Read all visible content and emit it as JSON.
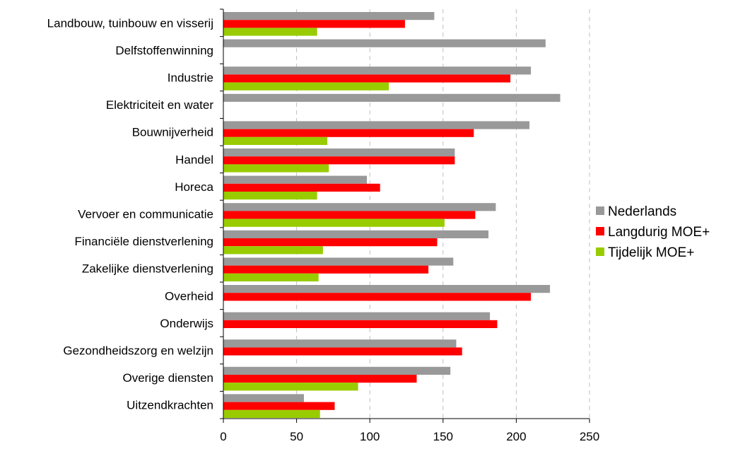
{
  "chart_data": {
    "type": "bar",
    "orientation": "horizontal",
    "title": "",
    "xlabel": "",
    "ylabel": "",
    "xlim": [
      0,
      250
    ],
    "xticks": [
      0,
      50,
      100,
      150,
      200,
      250
    ],
    "grid": "vertical dashed",
    "legend_position": "right",
    "categories": [
      "Landbouw, tuinbouw en visserij",
      "Delfstoffenwinning",
      "Industrie",
      "Elektriciteit en water",
      "Bouwnijverheid",
      "Handel",
      "Horeca",
      "Vervoer en communicatie",
      "Financiële dienstverlening",
      "Zakelijke dienstverlening",
      "Overheid",
      "Onderwijs",
      "Gezondheidszorg en welzijn",
      "Overige diensten",
      "Uitzendkrachten"
    ],
    "series": [
      {
        "name": "Nederlands",
        "color": "#999999",
        "values": [
          144,
          220,
          210,
          230,
          209,
          158,
          98,
          186,
          181,
          157,
          223,
          182,
          159,
          155,
          55
        ]
      },
      {
        "name": "Langdurig MOE+",
        "color": "#ff0000",
        "values": [
          124,
          null,
          196,
          null,
          171,
          158,
          107,
          172,
          146,
          140,
          210,
          187,
          163,
          132,
          76
        ]
      },
      {
        "name": "Tijdelijk MOE+",
        "color": "#99cc00",
        "values": [
          64,
          null,
          113,
          null,
          71,
          72,
          64,
          151,
          68,
          65,
          null,
          null,
          null,
          92,
          66
        ]
      }
    ]
  }
}
